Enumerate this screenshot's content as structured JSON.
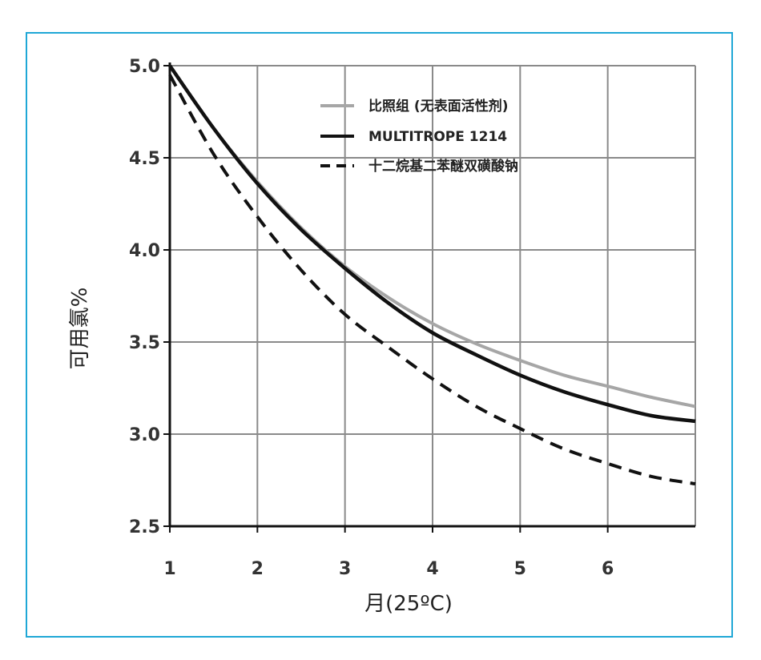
{
  "colors": {
    "frame": "#1fa7d6",
    "grid": "#8a8a8a",
    "axis": "#111111"
  },
  "chart_data": {
    "type": "line",
    "title": "",
    "xlabel": "月(25ºC)",
    "ylabel": "可用氯%",
    "xlim": [
      1,
      7
    ],
    "ylim": [
      2.5,
      5.0
    ],
    "xticks": [
      "1",
      "2",
      "3",
      "4",
      "5",
      "6"
    ],
    "yticks": [
      "5.0",
      "4.5",
      "4.0",
      "3.5",
      "3.0",
      "2.5"
    ],
    "grid": true,
    "legend_position": "top-right",
    "series": [
      {
        "name": "比照组 (无表面活性剂)",
        "style": "solid",
        "color": "#a6a6a6",
        "x": [
          1,
          1.5,
          2,
          2.5,
          3,
          3.5,
          4,
          4.5,
          5,
          5.5,
          6,
          6.5,
          7
        ],
        "y": [
          5.0,
          4.66,
          4.37,
          4.12,
          3.91,
          3.74,
          3.6,
          3.49,
          3.4,
          3.32,
          3.26,
          3.2,
          3.15
        ]
      },
      {
        "name": "MULTITROPE 1214",
        "style": "solid",
        "color": "#111111",
        "x": [
          1,
          1.5,
          2,
          2.5,
          3,
          3.5,
          4,
          4.5,
          5,
          5.5,
          6,
          6.5,
          7
        ],
        "y": [
          5.0,
          4.66,
          4.36,
          4.11,
          3.9,
          3.71,
          3.55,
          3.43,
          3.32,
          3.23,
          3.16,
          3.1,
          3.07
        ]
      },
      {
        "name": "十二烷基二苯醚双磺酸钠",
        "style": "dashed",
        "color": "#111111",
        "x": [
          1,
          1.5,
          2,
          2.5,
          3,
          3.5,
          4,
          4.5,
          5,
          5.5,
          6,
          6.5,
          7
        ],
        "y": [
          4.95,
          4.52,
          4.18,
          3.89,
          3.65,
          3.47,
          3.3,
          3.15,
          3.03,
          2.92,
          2.84,
          2.77,
          2.73
        ]
      }
    ]
  }
}
